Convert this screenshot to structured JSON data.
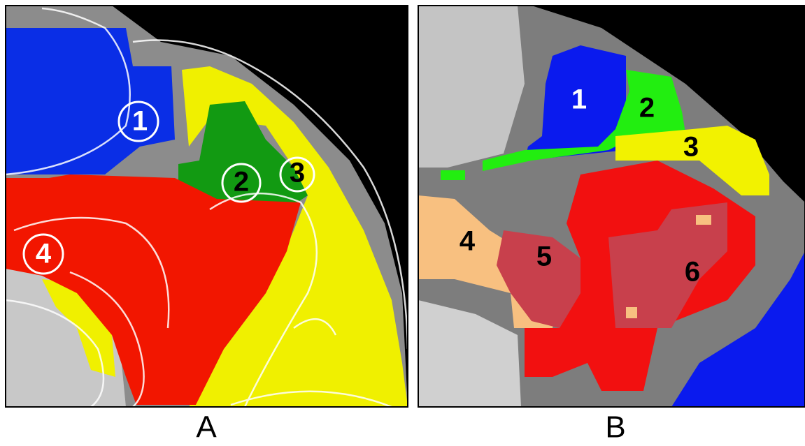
{
  "panels": [
    {
      "label": "A",
      "regions": [
        "1",
        "2",
        "3",
        "4"
      ]
    },
    {
      "label": "B",
      "regions": [
        "1",
        "2",
        "3",
        "4",
        "5",
        "6"
      ]
    }
  ]
}
